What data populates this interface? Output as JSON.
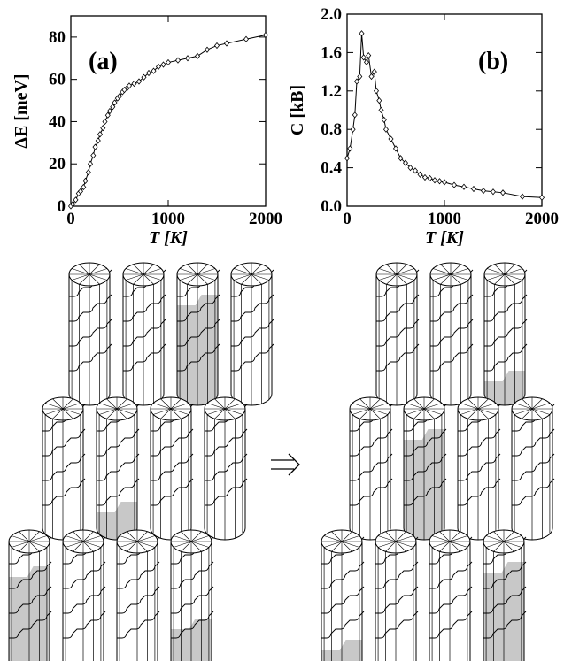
{
  "chart_data": [
    {
      "type": "line",
      "annotation": "(a)",
      "x_label": "T [K]",
      "y_label": "ΔE [meV]",
      "x": [
        0,
        20,
        50,
        80,
        100,
        130,
        150,
        180,
        200,
        230,
        250,
        280,
        300,
        330,
        350,
        380,
        400,
        430,
        450,
        480,
        500,
        530,
        550,
        580,
        600,
        650,
        700,
        750,
        800,
        850,
        900,
        950,
        1000,
        1100,
        1200,
        1300,
        1400,
        1500,
        1600,
        1800,
        2000
      ],
      "series": [
        {
          "color": "#000000",
          "values": [
            0,
            1,
            3,
            6,
            7,
            9,
            12,
            16,
            20,
            24,
            28,
            31,
            34,
            37,
            40,
            43,
            45,
            47,
            49,
            51,
            52,
            54,
            55,
            56,
            57,
            58,
            59,
            61,
            63,
            64,
            66,
            67,
            68,
            69,
            70,
            71,
            74,
            76,
            77,
            79,
            81
          ]
        }
      ],
      "xlim": [
        0,
        2000
      ],
      "ylim": [
        0,
        90
      ],
      "xticks": [
        0,
        1000,
        2000
      ],
      "yticks": [
        0,
        20,
        40,
        60,
        80
      ]
    },
    {
      "type": "line",
      "annotation": "(b)",
      "x_label": "T [K]",
      "y_label": "C [kB]",
      "x": [
        0,
        30,
        60,
        80,
        100,
        130,
        150,
        170,
        200,
        220,
        250,
        280,
        300,
        330,
        350,
        380,
        400,
        450,
        500,
        550,
        600,
        650,
        700,
        750,
        800,
        850,
        900,
        950,
        1000,
        1100,
        1200,
        1300,
        1400,
        1500,
        1600,
        1800,
        2000
      ],
      "series": [
        {
          "color": "#000000",
          "values": [
            0.5,
            0.6,
            0.8,
            0.95,
            1.3,
            1.35,
            1.8,
            1.55,
            1.5,
            1.57,
            1.35,
            1.4,
            1.2,
            1.1,
            1.0,
            0.9,
            0.8,
            0.7,
            0.6,
            0.5,
            0.45,
            0.4,
            0.37,
            0.33,
            0.3,
            0.29,
            0.27,
            0.26,
            0.25,
            0.22,
            0.2,
            0.18,
            0.16,
            0.15,
            0.14,
            0.1,
            0.09
          ]
        }
      ],
      "xlim": [
        0,
        2000
      ],
      "ylim": [
        0,
        2
      ],
      "xticks": [
        0,
        1000,
        2000
      ],
      "yticks": [
        {
          "value": 0,
          "label": "0.0"
        },
        0.4,
        0.8,
        1.2,
        1.6,
        {
          "value": 2,
          "label": "2.0"
        }
      ]
    }
  ]
}
